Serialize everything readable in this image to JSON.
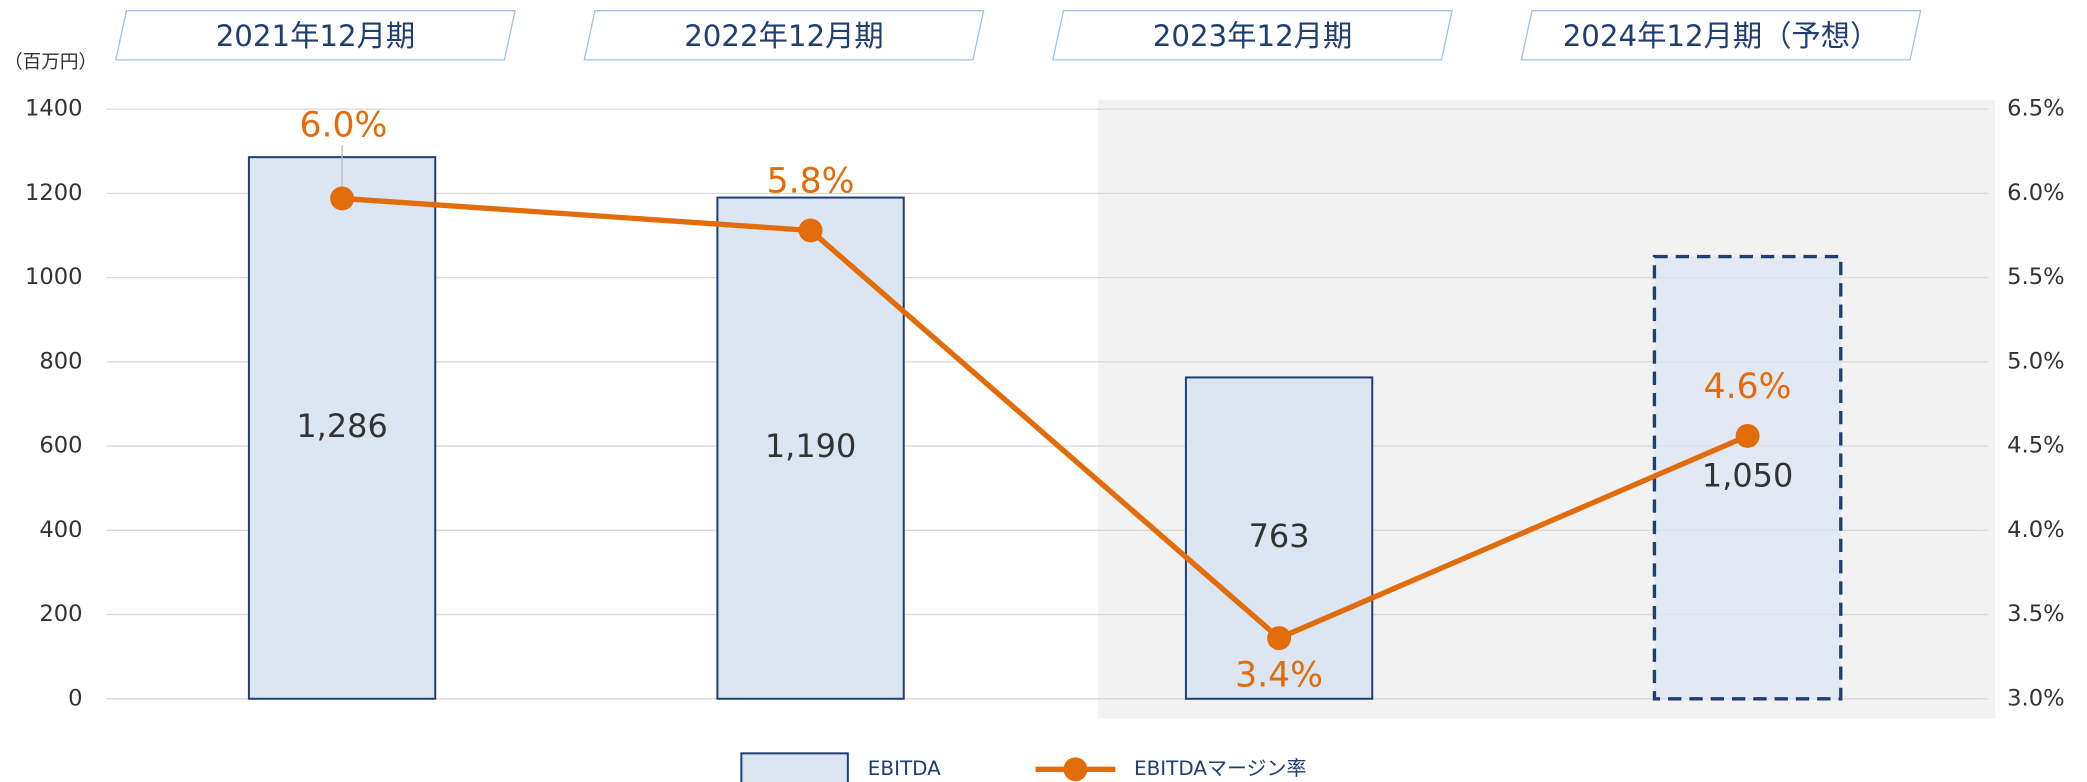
{
  "chart_data": {
    "type": "bar_line",
    "unit_label": "（百万円）",
    "categories": [
      "2021年12月期",
      "2022年12月期",
      "2023年12月期",
      "2024年12月期（予想）"
    ],
    "series": [
      {
        "name": "EBITDA",
        "type": "bar",
        "color": "#dce6f2",
        "border_color": "#1f3f73",
        "border_styles": [
          "solid",
          "solid",
          "solid",
          "dashed"
        ],
        "values": [
          1286,
          1190,
          763,
          1050
        ],
        "value_labels": [
          "1,286",
          "1,190",
          "763",
          "1,050"
        ]
      },
      {
        "name": "EBITDAマージン率",
        "type": "line",
        "axis": "y2",
        "color": "#e36c0a",
        "values": [
          5.97,
          5.78,
          3.36,
          4.56
        ],
        "value_labels": [
          "6.0%",
          "5.8%",
          "3.4%",
          "4.6%"
        ]
      }
    ],
    "shaded_categories": [
      2,
      3
    ],
    "ylim": [
      0,
      1400
    ],
    "yticks": [
      0,
      200,
      400,
      600,
      800,
      1000,
      1200,
      1400
    ],
    "y2lim": [
      3.0,
      6.5
    ],
    "y2ticks": [
      {
        "value": 3.0,
        "label": "3.0%"
      },
      {
        "value": 3.5,
        "label": "3.5%"
      },
      {
        "value": 4.0,
        "label": "4.0%"
      },
      {
        "value": 4.5,
        "label": "4.5%"
      },
      {
        "value": 5.0,
        "label": "5.0%"
      },
      {
        "value": 5.5,
        "label": "5.5%"
      },
      {
        "value": 6.0,
        "label": "6.0%"
      },
      {
        "value": 6.5,
        "label": "6.5%"
      }
    ],
    "grid": true,
    "legend": "bottom"
  }
}
